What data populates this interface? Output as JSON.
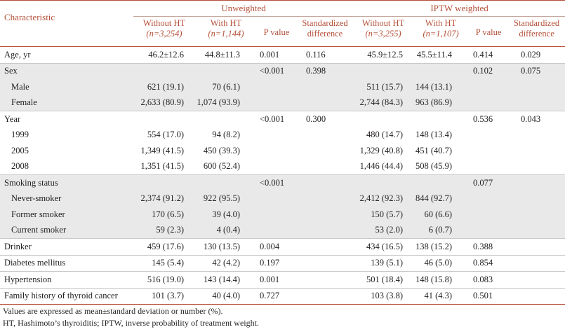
{
  "groups": {
    "unweighted": "Unweighted",
    "iptw": "IPTW weighted"
  },
  "columns": {
    "characteristic": "Characteristic",
    "without_ht": "Without HT",
    "with_ht": "With HT",
    "n_without_unw": "(n=3,254)",
    "n_with_unw": "(n=1,144)",
    "n_without_iptw": "(n=3,255)",
    "n_with_iptw": "(n=1,107)",
    "p_value": "P value",
    "std_diff_1": "Standardized",
    "std_diff_2": "difference"
  },
  "rows": [
    {
      "label": "Age, yr",
      "indent": false,
      "shade": false,
      "cells": [
        "46.2±12.6",
        "44.8±11.3",
        "0.001",
        "0.116",
        "45.9±12.5",
        "45.5±11.4",
        "0.414",
        "0.029"
      ]
    },
    {
      "label": "Sex",
      "indent": false,
      "shade": true,
      "cells": [
        "",
        "",
        "<0.001",
        "0.398",
        "",
        "",
        "0.102",
        "0.075"
      ]
    },
    {
      "label": "Male",
      "indent": true,
      "shade": true,
      "cells": [
        "621 (19.1)",
        "70 (6.1)",
        "",
        "",
        "511 (15.7)",
        "144 (13.1)",
        "",
        ""
      ]
    },
    {
      "label": "Female",
      "indent": true,
      "shade": true,
      "cells": [
        "2,633 (80.9)",
        "1,074 (93.9)",
        "",
        "",
        "2,744 (84.3)",
        "963 (86.9)",
        "",
        ""
      ]
    },
    {
      "label": "Year",
      "indent": false,
      "shade": false,
      "cells": [
        "",
        "",
        "<0.001",
        "0.300",
        "",
        "",
        "0.536",
        "0.043"
      ]
    },
    {
      "label": "1999",
      "indent": true,
      "shade": false,
      "cells": [
        "554 (17.0)",
        "94 (8.2)",
        "",
        "",
        "480 (14.7)",
        "148 (13.4)",
        "",
        ""
      ]
    },
    {
      "label": "2005",
      "indent": true,
      "shade": false,
      "cells": [
        "1,349 (41.5)",
        "450 (39.3)",
        "",
        "",
        "1,329 (40.8)",
        "451 (40.7)",
        "",
        ""
      ]
    },
    {
      "label": "2008",
      "indent": true,
      "shade": false,
      "cells": [
        "1,351 (41.5)",
        "600 (52.4)",
        "",
        "",
        "1,446 (44.4)",
        "508 (45.9)",
        "",
        ""
      ]
    },
    {
      "label": "Smoking status",
      "indent": false,
      "shade": true,
      "cells": [
        "",
        "",
        "<0.001",
        "",
        "",
        "",
        "0.077",
        ""
      ]
    },
    {
      "label": "Never-smoker",
      "indent": true,
      "shade": true,
      "cells": [
        "2,374 (91.2)",
        "922 (95.5)",
        "",
        "",
        "2,412 (92.3)",
        "844 (92.7)",
        "",
        ""
      ]
    },
    {
      "label": "Former smoker",
      "indent": true,
      "shade": true,
      "cells": [
        "170 (6.5)",
        "39 (4.0)",
        "",
        "",
        "150 (5.7)",
        "60 (6.6)",
        "",
        ""
      ]
    },
    {
      "label": "Current smoker",
      "indent": true,
      "shade": true,
      "cells": [
        "59 (2.3)",
        "4 (0.4)",
        "",
        "",
        "53 (2.0)",
        "6 (0.7)",
        "",
        ""
      ]
    },
    {
      "label": "Drinker",
      "indent": false,
      "shade": false,
      "cells": [
        "459 (17.6)",
        "130 (13.5)",
        "0.004",
        "",
        "434 (16.5)",
        "138 (15.2)",
        "0.388",
        ""
      ]
    },
    {
      "label": "Diabetes mellitus",
      "indent": false,
      "shade": false,
      "cells": [
        "145 (5.4)",
        "42 (4.2)",
        "0.197",
        "",
        "139 (5.1)",
        "46 (5.0)",
        "0.854",
        ""
      ]
    },
    {
      "label": "Hypertension",
      "indent": false,
      "shade": false,
      "cells": [
        "516 (19.0)",
        "143 (14.4)",
        "0.001",
        "",
        "501 (18.4)",
        "148 (15.8)",
        "0.083",
        ""
      ]
    },
    {
      "label": "Family history of thyroid cancer",
      "indent": false,
      "shade": false,
      "cells": [
        "101 (3.7)",
        "40 (4.0)",
        "0.727",
        "",
        "103 (3.8)",
        "41 (4.3)",
        "0.501",
        ""
      ]
    }
  ],
  "notes": [
    "Values are expressed as mean±standard deviation or number (%).",
    "HT, Hashimoto’s thyroiditis; IPTW, inverse probability of treatment weight."
  ],
  "colors": {
    "header_text": "#b5503a",
    "rule": "#b5503a",
    "shade": "#e9e9ea"
  }
}
